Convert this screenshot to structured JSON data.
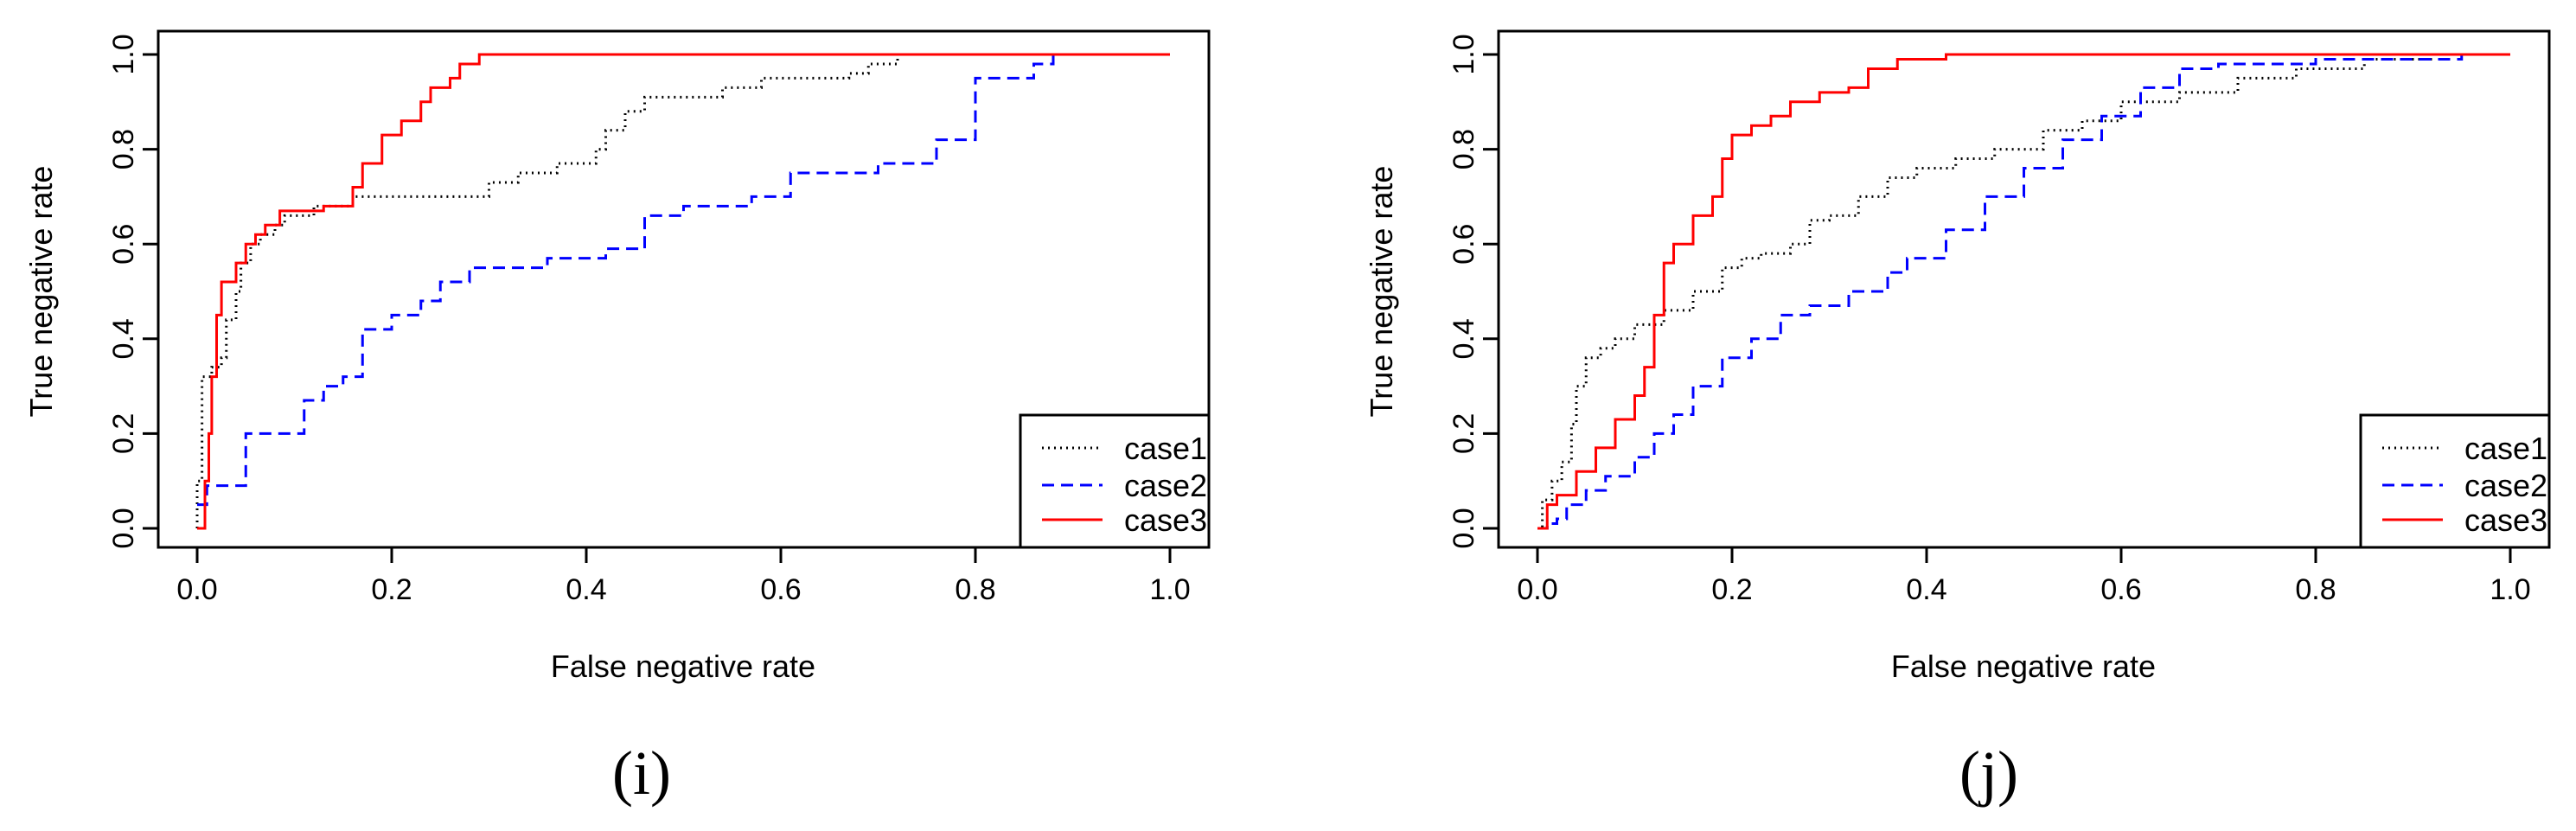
{
  "chart_data": [
    {
      "type": "line",
      "panel_label": "(i)",
      "xlabel": "False negative rate",
      "ylabel": "True negative rate",
      "xlim": [
        0,
        1
      ],
      "ylim": [
        0,
        1
      ],
      "xticks": [
        "0.0",
        "0.2",
        "0.4",
        "0.6",
        "0.8",
        "1.0"
      ],
      "yticks": [
        "0.0",
        "0.2",
        "0.4",
        "0.6",
        "0.8",
        "1.0"
      ],
      "legend_position": "bottom-right",
      "series": [
        {
          "name": "case1",
          "color": "#000000",
          "dash": "dotted",
          "points": [
            [
              0,
              0
            ],
            [
              0,
              0.1
            ],
            [
              0.005,
              0.32
            ],
            [
              0.015,
              0.34
            ],
            [
              0.025,
              0.36
            ],
            [
              0.03,
              0.44
            ],
            [
              0.04,
              0.5
            ],
            [
              0.045,
              0.56
            ],
            [
              0.055,
              0.6
            ],
            [
              0.065,
              0.62
            ],
            [
              0.08,
              0.64
            ],
            [
              0.09,
              0.66
            ],
            [
              0.12,
              0.68
            ],
            [
              0.16,
              0.7
            ],
            [
              0.28,
              0.7
            ],
            [
              0.3,
              0.73
            ],
            [
              0.33,
              0.75
            ],
            [
              0.37,
              0.77
            ],
            [
              0.41,
              0.8
            ],
            [
              0.42,
              0.84
            ],
            [
              0.44,
              0.88
            ],
            [
              0.46,
              0.91
            ],
            [
              0.52,
              0.91
            ],
            [
              0.54,
              0.93
            ],
            [
              0.58,
              0.95
            ],
            [
              0.67,
              0.96
            ],
            [
              0.69,
              0.98
            ],
            [
              0.72,
              1.0
            ],
            [
              0.75,
              1.0
            ]
          ]
        },
        {
          "name": "case2",
          "color": "#0000ff",
          "dash": "dashed",
          "points": [
            [
              0,
              0.05
            ],
            [
              0.01,
              0.09
            ],
            [
              0.03,
              0.09
            ],
            [
              0.05,
              0.2
            ],
            [
              0.09,
              0.2
            ],
            [
              0.11,
              0.27
            ],
            [
              0.13,
              0.3
            ],
            [
              0.15,
              0.32
            ],
            [
              0.17,
              0.42
            ],
            [
              0.2,
              0.45
            ],
            [
              0.23,
              0.48
            ],
            [
              0.25,
              0.52
            ],
            [
              0.28,
              0.55
            ],
            [
              0.32,
              0.55
            ],
            [
              0.36,
              0.57
            ],
            [
              0.42,
              0.59
            ],
            [
              0.43,
              0.59
            ],
            [
              0.46,
              0.66
            ],
            [
              0.5,
              0.68
            ],
            [
              0.54,
              0.68
            ],
            [
              0.57,
              0.7
            ],
            [
              0.61,
              0.75
            ],
            [
              0.66,
              0.75
            ],
            [
              0.7,
              0.77
            ],
            [
              0.76,
              0.82
            ],
            [
              0.8,
              0.95
            ],
            [
              0.84,
              0.95
            ],
            [
              0.86,
              0.98
            ],
            [
              0.88,
              1.0
            ],
            [
              1.0,
              1.0
            ]
          ]
        },
        {
          "name": "case3",
          "color": "#ff0000",
          "dash": "solid",
          "points": [
            [
              0,
              0
            ],
            [
              0.005,
              0
            ],
            [
              0.008,
              0.1
            ],
            [
              0.012,
              0.2
            ],
            [
              0.015,
              0.32
            ],
            [
              0.02,
              0.45
            ],
            [
              0.025,
              0.52
            ],
            [
              0.035,
              0.52
            ],
            [
              0.04,
              0.56
            ],
            [
              0.05,
              0.6
            ],
            [
              0.06,
              0.62
            ],
            [
              0.07,
              0.64
            ],
            [
              0.085,
              0.67
            ],
            [
              0.13,
              0.68
            ],
            [
              0.16,
              0.72
            ],
            [
              0.17,
              0.77
            ],
            [
              0.19,
              0.83
            ],
            [
              0.21,
              0.86
            ],
            [
              0.23,
              0.9
            ],
            [
              0.24,
              0.93
            ],
            [
              0.26,
              0.95
            ],
            [
              0.27,
              0.98
            ],
            [
              0.29,
              1.0
            ],
            [
              1.0,
              1.0
            ]
          ]
        }
      ]
    },
    {
      "type": "line",
      "panel_label": "(j)",
      "xlabel": "False negative rate",
      "ylabel": "True negative rate",
      "xlim": [
        0,
        1
      ],
      "ylim": [
        0,
        1
      ],
      "xticks": [
        "0.0",
        "0.2",
        "0.4",
        "0.6",
        "0.8",
        "1.0"
      ],
      "yticks": [
        "0.0",
        "0.2",
        "0.4",
        "0.6",
        "0.8",
        "1.0"
      ],
      "legend_position": "bottom-right",
      "series": [
        {
          "name": "case1",
          "color": "#000000",
          "dash": "dotted",
          "points": [
            [
              0,
              0
            ],
            [
              0.005,
              0.06
            ],
            [
              0.015,
              0.1
            ],
            [
              0.025,
              0.14
            ],
            [
              0.035,
              0.22
            ],
            [
              0.04,
              0.3
            ],
            [
              0.05,
              0.36
            ],
            [
              0.065,
              0.38
            ],
            [
              0.08,
              0.4
            ],
            [
              0.1,
              0.43
            ],
            [
              0.13,
              0.46
            ],
            [
              0.16,
              0.5
            ],
            [
              0.19,
              0.55
            ],
            [
              0.21,
              0.57
            ],
            [
              0.23,
              0.58
            ],
            [
              0.26,
              0.6
            ],
            [
              0.28,
              0.65
            ],
            [
              0.3,
              0.66
            ],
            [
              0.33,
              0.7
            ],
            [
              0.36,
              0.74
            ],
            [
              0.39,
              0.76
            ],
            [
              0.43,
              0.78
            ],
            [
              0.47,
              0.8
            ],
            [
              0.52,
              0.84
            ],
            [
              0.56,
              0.86
            ],
            [
              0.6,
              0.9
            ],
            [
              0.66,
              0.92
            ],
            [
              0.72,
              0.95
            ],
            [
              0.78,
              0.97
            ],
            [
              0.85,
              0.99
            ],
            [
              0.92,
              1.0
            ],
            [
              0.97,
              1.0
            ]
          ]
        },
        {
          "name": "case2",
          "color": "#0000ff",
          "dash": "dashed",
          "points": [
            [
              0,
              0
            ],
            [
              0.01,
              0.01
            ],
            [
              0.02,
              0.02
            ],
            [
              0.03,
              0.05
            ],
            [
              0.05,
              0.08
            ],
            [
              0.07,
              0.11
            ],
            [
              0.1,
              0.15
            ],
            [
              0.12,
              0.2
            ],
            [
              0.14,
              0.24
            ],
            [
              0.16,
              0.3
            ],
            [
              0.19,
              0.36
            ],
            [
              0.22,
              0.4
            ],
            [
              0.25,
              0.45
            ],
            [
              0.28,
              0.47
            ],
            [
              0.32,
              0.5
            ],
            [
              0.36,
              0.54
            ],
            [
              0.38,
              0.57
            ],
            [
              0.42,
              0.63
            ],
            [
              0.46,
              0.7
            ],
            [
              0.5,
              0.76
            ],
            [
              0.54,
              0.82
            ],
            [
              0.58,
              0.87
            ],
            [
              0.62,
              0.93
            ],
            [
              0.66,
              0.97
            ],
            [
              0.7,
              0.98
            ],
            [
              0.8,
              0.99
            ],
            [
              0.95,
              1.0
            ],
            [
              1.0,
              1.0
            ]
          ]
        },
        {
          "name": "case3",
          "color": "#ff0000",
          "dash": "solid",
          "points": [
            [
              0,
              0
            ],
            [
              0.01,
              0.05
            ],
            [
              0.02,
              0.07
            ],
            [
              0.04,
              0.12
            ],
            [
              0.06,
              0.17
            ],
            [
              0.08,
              0.23
            ],
            [
              0.1,
              0.28
            ],
            [
              0.11,
              0.34
            ],
            [
              0.12,
              0.45
            ],
            [
              0.13,
              0.56
            ],
            [
              0.14,
              0.6
            ],
            [
              0.16,
              0.66
            ],
            [
              0.18,
              0.7
            ],
            [
              0.19,
              0.78
            ],
            [
              0.2,
              0.83
            ],
            [
              0.22,
              0.85
            ],
            [
              0.24,
              0.87
            ],
            [
              0.26,
              0.9
            ],
            [
              0.29,
              0.92
            ],
            [
              0.32,
              0.93
            ],
            [
              0.34,
              0.97
            ],
            [
              0.37,
              0.99
            ],
            [
              0.42,
              1.0
            ],
            [
              1.0,
              1.0
            ]
          ]
        }
      ]
    }
  ]
}
